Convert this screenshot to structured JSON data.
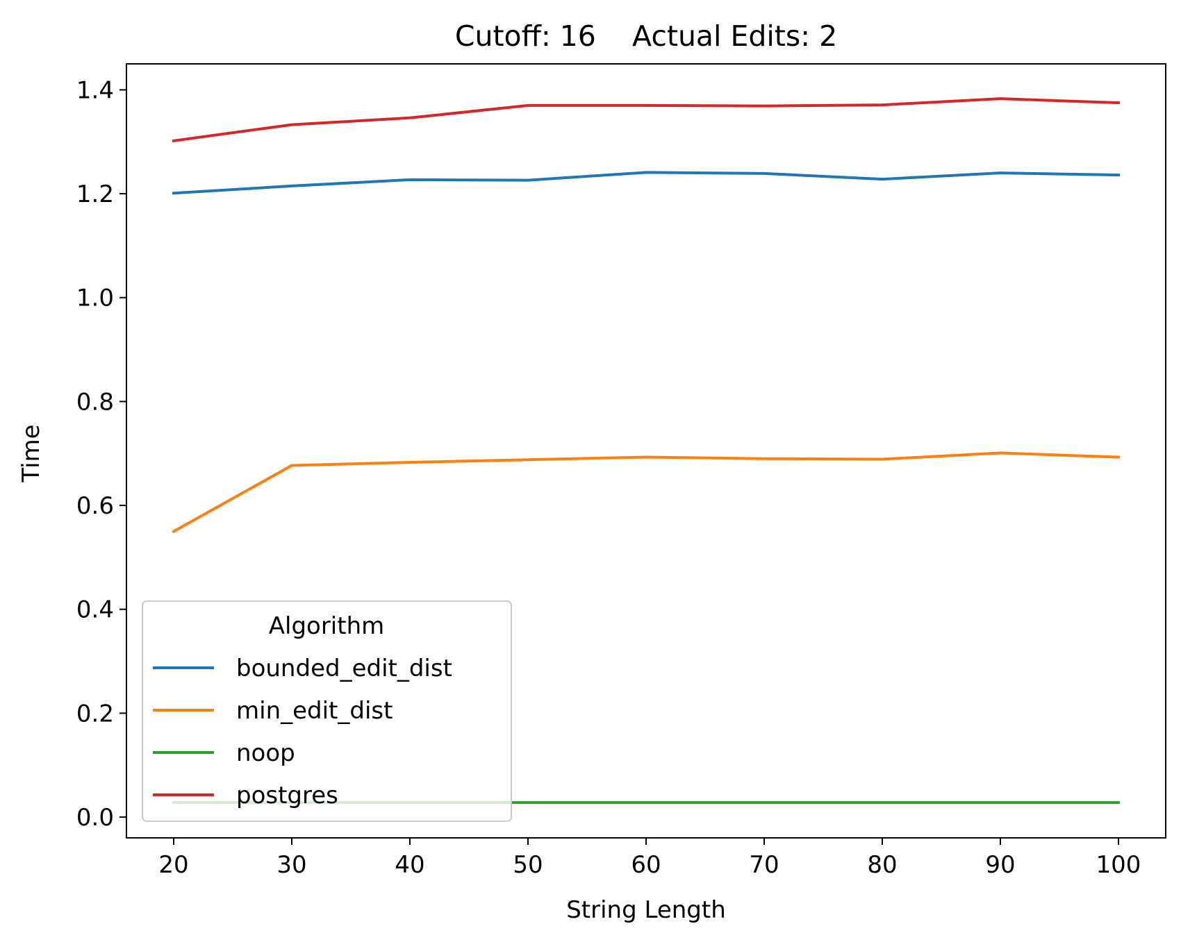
{
  "chart_data": {
    "type": "line",
    "title": "Cutoff: 16    Actual Edits: 2",
    "xlabel": "String Length",
    "ylabel": "Time",
    "x": [
      20,
      30,
      40,
      50,
      60,
      70,
      80,
      90,
      100
    ],
    "xlim": [
      16,
      104
    ],
    "ylim": [
      -0.04,
      1.45
    ],
    "xticks": [
      "20",
      "30",
      "40",
      "50",
      "60",
      "70",
      "80",
      "90",
      "100"
    ],
    "yticks": [
      "0.0",
      "0.2",
      "0.4",
      "0.6",
      "0.8",
      "1.0",
      "1.2",
      "1.4"
    ],
    "grid": false,
    "legend": {
      "title": "Algorithm",
      "placement": "lower-left"
    },
    "series": [
      {
        "name": "bounded_edit_dist",
        "color": "#1f77b4",
        "values": [
          1.201,
          1.215,
          1.227,
          1.226,
          1.241,
          1.239,
          1.228,
          1.24,
          1.236
        ]
      },
      {
        "name": "min_edit_dist",
        "color": "#ff7f0e",
        "values": [
          0.55,
          0.677,
          0.683,
          0.688,
          0.693,
          0.69,
          0.689,
          0.701,
          0.693
        ]
      },
      {
        "name": "noop",
        "color": "#2ca02c",
        "values": [
          0.028,
          0.028,
          0.028,
          0.028,
          0.028,
          0.028,
          0.028,
          0.028,
          0.028
        ]
      },
      {
        "name": "postgres",
        "color": "#d62728",
        "values": [
          1.302,
          1.333,
          1.346,
          1.37,
          1.37,
          1.369,
          1.371,
          1.383,
          1.375
        ]
      }
    ]
  }
}
